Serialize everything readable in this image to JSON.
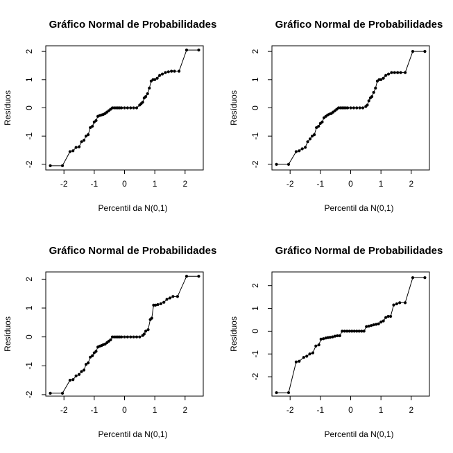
{
  "chart_data": [
    {
      "type": "line",
      "title": "Gráfico Normal de Probabilidades",
      "xlabel": "Percentil da N(0,1)",
      "ylabel": "Resíduos",
      "xlim": [
        -2.6,
        2.6
      ],
      "ylim": [
        -2.2,
        2.2
      ],
      "xticks": [
        -2,
        -1,
        0,
        1,
        2
      ],
      "yticks": [
        -2,
        -1,
        0,
        1,
        2
      ],
      "grid": false,
      "x": [
        -2.45,
        -2.05,
        -1.8,
        -1.7,
        -1.6,
        -1.5,
        -1.42,
        -1.34,
        -1.27,
        -1.2,
        -1.13,
        -1.06,
        -1.0,
        -0.94,
        -0.88,
        -0.82,
        -0.76,
        -0.7,
        -0.64,
        -0.58,
        -0.52,
        -0.46,
        -0.4,
        -0.34,
        -0.28,
        -0.22,
        -0.16,
        -0.1,
        0.0,
        0.1,
        0.2,
        0.3,
        0.4,
        0.5,
        0.55,
        0.6,
        0.65,
        0.7,
        0.76,
        0.82,
        0.88,
        0.94,
        1.0,
        1.08,
        1.16,
        1.25,
        1.35,
        1.45,
        1.55,
        1.65,
        1.8,
        2.05,
        2.45
      ],
      "y": [
        -2.05,
        -2.05,
        -1.55,
        -1.52,
        -1.4,
        -1.38,
        -1.2,
        -1.15,
        -1.0,
        -0.95,
        -0.7,
        -0.65,
        -0.5,
        -0.45,
        -0.3,
        -0.27,
        -0.25,
        -0.23,
        -0.2,
        -0.15,
        -0.1,
        -0.05,
        0.0,
        0.0,
        0.0,
        0.0,
        0.0,
        0.0,
        0.0,
        0.0,
        0.0,
        0.0,
        0.0,
        0.1,
        0.15,
        0.2,
        0.35,
        0.4,
        0.5,
        0.7,
        0.95,
        1.0,
        1.0,
        1.05,
        1.15,
        1.2,
        1.25,
        1.28,
        1.3,
        1.3,
        1.3,
        2.05,
        2.05
      ]
    },
    {
      "type": "line",
      "title": "Gráfico Normal de Probabilidades",
      "xlabel": "Percentil da N(0,1)",
      "ylabel": "Resíduos",
      "xlim": [
        -2.6,
        2.6
      ],
      "ylim": [
        -2.2,
        2.2
      ],
      "xticks": [
        -2,
        -1,
        0,
        1,
        2
      ],
      "yticks": [
        -2,
        -1,
        0,
        1,
        2
      ],
      "grid": false,
      "x": [
        -2.45,
        -2.05,
        -1.8,
        -1.7,
        -1.6,
        -1.5,
        -1.42,
        -1.34,
        -1.27,
        -1.2,
        -1.13,
        -1.06,
        -1.0,
        -0.94,
        -0.88,
        -0.82,
        -0.76,
        -0.7,
        -0.64,
        -0.58,
        -0.52,
        -0.46,
        -0.4,
        -0.34,
        -0.28,
        -0.22,
        -0.16,
        -0.1,
        0.0,
        0.1,
        0.2,
        0.3,
        0.4,
        0.5,
        0.55,
        0.6,
        0.65,
        0.7,
        0.76,
        0.82,
        0.88,
        0.94,
        1.0,
        1.08,
        1.16,
        1.25,
        1.35,
        1.45,
        1.55,
        1.65,
        1.8,
        2.05,
        2.45
      ],
      "y": [
        -2.0,
        -2.0,
        -1.55,
        -1.52,
        -1.45,
        -1.4,
        -1.2,
        -1.1,
        -1.0,
        -0.95,
        -0.7,
        -0.65,
        -0.55,
        -0.5,
        -0.35,
        -0.3,
        -0.25,
        -0.22,
        -0.2,
        -0.15,
        -0.1,
        -0.05,
        0.0,
        0.0,
        0.0,
        0.0,
        0.0,
        0.0,
        0.0,
        0.0,
        0.0,
        0.0,
        0.0,
        0.05,
        0.1,
        0.25,
        0.35,
        0.4,
        0.55,
        0.7,
        0.95,
        1.0,
        1.0,
        1.05,
        1.15,
        1.2,
        1.25,
        1.25,
        1.25,
        1.25,
        1.25,
        2.0,
        2.0
      ]
    },
    {
      "type": "line",
      "title": "Gráfico Normal de Probabilidades",
      "xlabel": "Percentil da N(0,1)",
      "ylabel": "Resíduos",
      "xlim": [
        -2.6,
        2.6
      ],
      "ylim": [
        -2.05,
        2.25
      ],
      "xticks": [
        -2,
        -1,
        0,
        1,
        2
      ],
      "yticks": [
        -2,
        -1,
        0,
        1,
        2
      ],
      "grid": false,
      "x": [
        -2.45,
        -2.05,
        -1.8,
        -1.7,
        -1.6,
        -1.5,
        -1.42,
        -1.34,
        -1.27,
        -1.2,
        -1.13,
        -1.06,
        -1.0,
        -0.94,
        -0.88,
        -0.82,
        -0.76,
        -0.7,
        -0.64,
        -0.58,
        -0.52,
        -0.46,
        -0.4,
        -0.34,
        -0.28,
        -0.22,
        -0.16,
        -0.1,
        0.0,
        0.1,
        0.2,
        0.3,
        0.4,
        0.5,
        0.6,
        0.65,
        0.7,
        0.78,
        0.85,
        0.9,
        0.96,
        1.02,
        1.1,
        1.2,
        1.3,
        1.4,
        1.5,
        1.6,
        1.75,
        2.05,
        2.45
      ],
      "y": [
        -1.95,
        -1.95,
        -1.5,
        -1.48,
        -1.35,
        -1.3,
        -1.2,
        -1.15,
        -0.95,
        -0.9,
        -0.7,
        -0.65,
        -0.55,
        -0.5,
        -0.35,
        -0.32,
        -0.3,
        -0.27,
        -0.25,
        -0.2,
        -0.15,
        -0.1,
        0.0,
        0.0,
        0.0,
        0.0,
        0.0,
        0.0,
        0.0,
        0.0,
        0.0,
        0.0,
        0.0,
        0.0,
        0.05,
        0.1,
        0.2,
        0.25,
        0.6,
        0.65,
        1.1,
        1.1,
        1.12,
        1.15,
        1.2,
        1.3,
        1.35,
        1.4,
        1.4,
        2.1,
        2.1
      ]
    },
    {
      "type": "line",
      "title": "Gráfico Normal de Probabilidades",
      "xlabel": "Percentil da N(0,1)",
      "ylabel": "Resíduos",
      "xlim": [
        -2.6,
        2.6
      ],
      "ylim": [
        -2.85,
        2.6
      ],
      "xticks": [
        -2,
        -1,
        0,
        1,
        2
      ],
      "yticks": [
        -2,
        -1,
        0,
        1,
        2
      ],
      "grid": false,
      "x": [
        -2.45,
        -2.05,
        -1.8,
        -1.7,
        -1.55,
        -1.45,
        -1.35,
        -1.25,
        -1.15,
        -1.05,
        -0.98,
        -0.9,
        -0.82,
        -0.75,
        -0.68,
        -0.6,
        -0.52,
        -0.44,
        -0.36,
        -0.28,
        -0.2,
        -0.12,
        -0.04,
        0.04,
        0.12,
        0.2,
        0.28,
        0.36,
        0.44,
        0.52,
        0.6,
        0.68,
        0.76,
        0.84,
        0.92,
        1.0,
        1.08,
        1.16,
        1.24,
        1.32,
        1.42,
        1.52,
        1.62,
        1.8,
        2.05,
        2.45
      ],
      "y": [
        -2.7,
        -2.7,
        -1.35,
        -1.32,
        -1.15,
        -1.1,
        -1.0,
        -0.95,
        -0.65,
        -0.6,
        -0.35,
        -0.33,
        -0.3,
        -0.28,
        -0.27,
        -0.25,
        -0.22,
        -0.2,
        -0.2,
        0.0,
        0.0,
        0.0,
        0.0,
        0.0,
        0.0,
        0.0,
        0.0,
        0.0,
        0.0,
        0.2,
        0.22,
        0.25,
        0.28,
        0.3,
        0.32,
        0.4,
        0.45,
        0.6,
        0.65,
        0.65,
        1.15,
        1.2,
        1.25,
        1.25,
        2.35,
        2.35
      ]
    }
  ]
}
